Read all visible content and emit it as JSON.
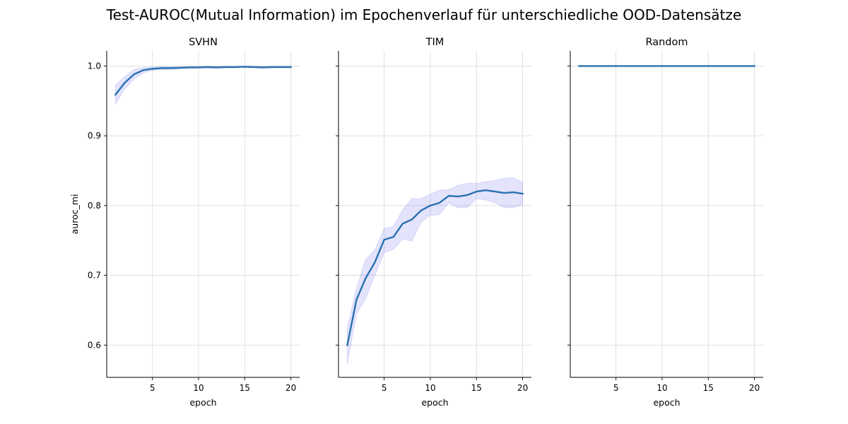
{
  "title": "Test-AUROC(Mutual Information) im Epochenverlauf für unterschiedliche OOD-Datensätze",
  "chart_data": [
    {
      "type": "line",
      "title": "SVHN",
      "xlabel": "epoch",
      "ylabel": "auroc_mi",
      "x": [
        1,
        2,
        3,
        4,
        5,
        6,
        7,
        8,
        9,
        10,
        11,
        12,
        13,
        14,
        15,
        16,
        17,
        18,
        19,
        20
      ],
      "mean": [
        0.959,
        0.976,
        0.988,
        0.994,
        0.996,
        0.997,
        0.997,
        0.9975,
        0.998,
        0.998,
        0.9985,
        0.998,
        0.9985,
        0.9985,
        0.999,
        0.9985,
        0.998,
        0.9985,
        0.9985,
        0.9985
      ],
      "lower": [
        0.945,
        0.967,
        0.981,
        0.99,
        0.994,
        0.995,
        0.995,
        0.996,
        0.9965,
        0.997,
        0.997,
        0.997,
        0.9975,
        0.9975,
        0.998,
        0.9975,
        0.997,
        0.9975,
        0.9975,
        0.9975
      ],
      "upper": [
        0.973,
        0.985,
        0.995,
        0.998,
        0.9985,
        0.999,
        0.999,
        0.999,
        0.9995,
        0.9995,
        0.9995,
        0.9995,
        0.9995,
        0.9995,
        0.9995,
        0.9995,
        0.9995,
        0.9995,
        0.9995,
        0.9995
      ],
      "xticks": [
        5,
        10,
        15,
        20
      ],
      "yticks": [
        0.6,
        0.7,
        0.8,
        0.9,
        1.0
      ],
      "show_yticklabels": true,
      "xlim": [
        0.05,
        20.95
      ],
      "ylim": [
        0.5537,
        1.0217
      ],
      "grid": true
    },
    {
      "type": "line",
      "title": "TIM",
      "xlabel": "epoch",
      "ylabel": "",
      "x": [
        1,
        2,
        3,
        4,
        5,
        6,
        7,
        8,
        9,
        10,
        11,
        12,
        13,
        14,
        15,
        16,
        17,
        18,
        19,
        20
      ],
      "mean": [
        0.6,
        0.665,
        0.696,
        0.719,
        0.751,
        0.755,
        0.774,
        0.78,
        0.793,
        0.8,
        0.804,
        0.814,
        0.813,
        0.815,
        0.82,
        0.822,
        0.82,
        0.818,
        0.819,
        0.817
      ],
      "lower": [
        0.573,
        0.645,
        0.667,
        0.7,
        0.733,
        0.737,
        0.752,
        0.749,
        0.776,
        0.786,
        0.787,
        0.804,
        0.797,
        0.797,
        0.81,
        0.808,
        0.804,
        0.797,
        0.797,
        0.801
      ],
      "upper": [
        0.625,
        0.682,
        0.723,
        0.737,
        0.767,
        0.77,
        0.794,
        0.81,
        0.81,
        0.816,
        0.822,
        0.823,
        0.829,
        0.832,
        0.832,
        0.834,
        0.836,
        0.839,
        0.84,
        0.833
      ],
      "xticks": [
        5,
        10,
        15,
        20
      ],
      "yticks": [
        0.6,
        0.7,
        0.8,
        0.9,
        1.0
      ],
      "show_yticklabels": false,
      "xlim": [
        0.05,
        20.95
      ],
      "ylim": [
        0.5537,
        1.0217
      ],
      "grid": true
    },
    {
      "type": "line",
      "title": "Random",
      "xlabel": "epoch",
      "ylabel": "",
      "x": [
        1,
        2,
        3,
        4,
        5,
        6,
        7,
        8,
        9,
        10,
        11,
        12,
        13,
        14,
        15,
        16,
        17,
        18,
        19,
        20
      ],
      "mean": [
        1,
        1,
        1,
        1,
        1,
        1,
        1,
        1,
        1,
        1,
        1,
        1,
        1,
        1,
        1,
        1,
        1,
        1,
        1,
        1
      ],
      "lower": [
        1,
        1,
        1,
        1,
        1,
        1,
        1,
        1,
        1,
        1,
        1,
        1,
        1,
        1,
        1,
        1,
        1,
        1,
        1,
        1
      ],
      "upper": [
        1,
        1,
        1,
        1,
        1,
        1,
        1,
        1,
        1,
        1,
        1,
        1,
        1,
        1,
        1,
        1,
        1,
        1,
        1,
        1
      ],
      "xticks": [
        5,
        10,
        15,
        20
      ],
      "yticks": [
        0.6,
        0.7,
        0.8,
        0.9,
        1.0
      ],
      "show_yticklabels": false,
      "xlim": [
        0.05,
        20.95
      ],
      "ylim": [
        0.5537,
        1.0217
      ],
      "grid": true
    }
  ],
  "colors": {
    "line": "#2a72b0",
    "band": "#6666ee"
  }
}
